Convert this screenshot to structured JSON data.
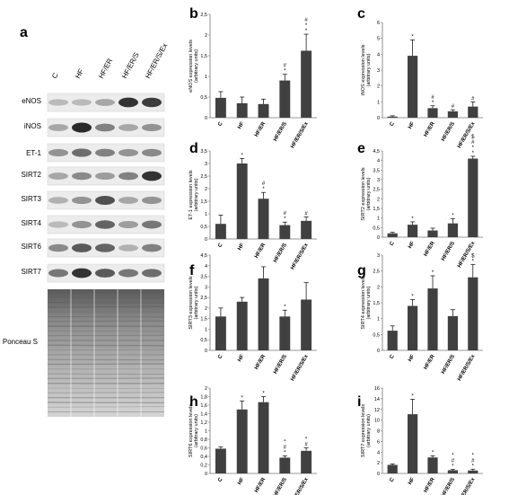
{
  "panel_a": {
    "letter": "a",
    "lanes": [
      "C",
      "HF",
      "HF/ER",
      "HF/ER/S",
      "HF/ER/S/Ex"
    ],
    "rows": [
      "eNOS",
      "iNOS",
      "ET-1",
      "SIRT2",
      "SIRT3",
      "SIRT4",
      "SIRT6",
      "SIRT7"
    ],
    "loading_label": "Ponceau S"
  },
  "chart_data": [
    {
      "panel": "b",
      "type": "bar",
      "categories": [
        "C",
        "HF",
        "HF/ER",
        "HF/ER/S",
        "HF/ER/S/Ex"
      ],
      "values": [
        0.48,
        0.35,
        0.33,
        0.9,
        1.62
      ],
      "errors": [
        0.15,
        0.15,
        0.12,
        0.15,
        0.4
      ],
      "ylabel": "eNOS expression levels\n(arbitrary units)",
      "ylim": [
        0,
        2.5
      ],
      "yticks": [
        0,
        0.5,
        1,
        1.5,
        2,
        2.5
      ],
      "ytick_labels": [
        "0",
        "0,5",
        "1",
        "1,5",
        "2",
        "2,5"
      ],
      "annotations": [
        [],
        [],
        [],
        [
          "#",
          "*"
        ],
        [
          "#",
          "*",
          "*"
        ]
      ]
    },
    {
      "panel": "c",
      "type": "bar",
      "categories": [
        "C",
        "HF",
        "HF/ER",
        "HF/ER/S",
        "HF/ER/S/Ex"
      ],
      "values": [
        0.07,
        3.9,
        0.6,
        0.4,
        0.7
      ],
      "errors": [
        0.05,
        1.0,
        0.15,
        0.1,
        0.3
      ],
      "ylabel": "iNOS expression levels\n(arbitrary units)",
      "ylim": [
        0,
        6
      ],
      "yticks": [
        0,
        1,
        2,
        3,
        4,
        5,
        6
      ],
      "ytick_labels": [
        "0",
        "1",
        "2",
        "3",
        "4",
        "5",
        "6"
      ],
      "annotations": [
        [],
        [
          "*"
        ],
        [
          "#",
          "*"
        ],
        [
          "#"
        ],
        [
          "#"
        ]
      ]
    },
    {
      "panel": "d",
      "type": "bar",
      "categories": [
        "C",
        "HF",
        "HF/ER",
        "HF/ER/S",
        "HF/ER/S/Ex"
      ],
      "values": [
        0.6,
        3.0,
        1.6,
        0.55,
        0.72
      ],
      "errors": [
        0.35,
        0.2,
        0.25,
        0.12,
        0.15
      ],
      "ylabel": "ET-1 expression levels\n(arbitrary units)",
      "ylim": [
        0,
        3.5
      ],
      "yticks": [
        0,
        0.5,
        1,
        1.5,
        2,
        2.5,
        3,
        3.5
      ],
      "ytick_labels": [
        "0",
        "0,5",
        "1",
        "1,5",
        "2",
        "2,5",
        "3",
        "3,5"
      ],
      "annotations": [
        [],
        [
          "*"
        ],
        [
          "#",
          "*"
        ],
        [
          "#",
          "*"
        ],
        [
          "#"
        ]
      ]
    },
    {
      "panel": "e",
      "type": "bar",
      "categories": [
        "C",
        "HF",
        "HF/ER",
        "HF/ER/S",
        "HF/ER/S/Ex"
      ],
      "values": [
        0.2,
        0.65,
        0.35,
        0.72,
        4.1
      ],
      "errors": [
        0.05,
        0.15,
        0.12,
        0.25,
        0.12
      ],
      "ylabel": "SIRT2 expression levels\n(arbitrary units)",
      "ylim": [
        0,
        4.5
      ],
      "yticks": [
        0,
        0.5,
        1,
        1.5,
        2,
        2.5,
        3,
        3.5,
        4,
        4.5
      ],
      "ytick_labels": [
        "0",
        "0,5",
        "1",
        "1,5",
        "2",
        "2,5",
        "3",
        "3,5",
        "4",
        "4,5"
      ],
      "annotations": [
        [],
        [
          "*"
        ],
        [],
        [
          "*"
        ],
        [
          "$",
          "#",
          "*",
          "*"
        ]
      ]
    },
    {
      "panel": "f",
      "type": "bar",
      "categories": [
        "C",
        "HF",
        "HF/ER",
        "HF/ER/S",
        "HF/ER/S/Ex"
      ],
      "values": [
        1.6,
        2.3,
        3.4,
        1.6,
        2.4
      ],
      "errors": [
        0.4,
        0.2,
        0.55,
        0.3,
        0.8
      ],
      "ylabel": "SIRT3 expression levels\n(arbitrary units)",
      "ylim": [
        0,
        4.5
      ],
      "yticks": [
        0,
        0.5,
        1,
        1.5,
        2,
        2.5,
        3,
        3.5,
        4,
        4.5
      ],
      "ytick_labels": [
        "0",
        "0,5",
        "1",
        "1,5",
        "2",
        "2,5",
        "3",
        "3,5",
        "4",
        "4,5"
      ],
      "annotations": [
        [],
        [],
        [],
        [
          "*"
        ],
        []
      ]
    },
    {
      "panel": "g",
      "type": "bar",
      "categories": [
        "C",
        "HF",
        "HF/ER",
        "HF/ER/S",
        "HF/ER/S/Ex"
      ],
      "values": [
        0.62,
        1.4,
        1.95,
        1.08,
        2.3
      ],
      "errors": [
        0.15,
        0.2,
        0.4,
        0.2,
        0.4
      ],
      "ylabel": "SIRT4 expression levels\n(arbitrary units)",
      "ylim": [
        0,
        3
      ],
      "yticks": [
        0,
        0.5,
        1,
        1.5,
        2,
        2.5,
        3
      ],
      "ytick_labels": [
        "0",
        "0,5",
        "1",
        "1,5",
        "2",
        "2,5",
        "3"
      ],
      "annotations": [
        [],
        [
          "*"
        ],
        [
          "*"
        ],
        [],
        [
          "$",
          "*"
        ]
      ]
    },
    {
      "panel": "h",
      "type": "bar",
      "categories": [
        "C",
        "HF",
        "HF/ER",
        "HF/ER/S",
        "HF/ER/S/Ex"
      ],
      "values": [
        0.58,
        1.5,
        1.67,
        0.37,
        0.53
      ],
      "errors": [
        0.04,
        0.2,
        0.13,
        0.04,
        0.07
      ],
      "ylabel": "SIRT6 expression levels\n(arbitrary units)",
      "ylim": [
        0,
        2
      ],
      "yticks": [
        0,
        0.2,
        0.4,
        0.6,
        0.8,
        1,
        1.2,
        1.4,
        1.6,
        1.8,
        2
      ],
      "ytick_labels": [
        "0",
        "0,2",
        "0,4",
        "0,6",
        "0,8",
        "1",
        "1,2",
        "1,4",
        "1,6",
        "1,8",
        "2"
      ],
      "annotations": [
        [],
        [
          "*"
        ],
        [
          "*"
        ],
        [
          "*",
          "#",
          "*"
        ],
        [
          "*",
          "#"
        ]
      ]
    },
    {
      "panel": "i",
      "type": "bar",
      "categories": [
        "C",
        "HF",
        "HF/ER",
        "HF/ER/S",
        "HF/ER/S/Ex"
      ],
      "values": [
        1.6,
        11.1,
        3.0,
        0.6,
        0.55
      ],
      "errors": [
        0.2,
        2.8,
        0.3,
        0.15,
        0.25
      ],
      "ylabel": "SIRT7 expression levels\n(arbitrary units)",
      "ylim": [
        0,
        16
      ],
      "yticks": [
        0,
        2,
        4,
        6,
        8,
        10,
        12,
        14,
        16
      ],
      "ytick_labels": [
        "0",
        "2",
        "4",
        "6",
        "8",
        "10",
        "12",
        "14",
        "16"
      ],
      "annotations": [
        [],
        [
          "*"
        ],
        [
          "*"
        ],
        [
          "*",
          "#",
          "*"
        ],
        [
          "*",
          "#",
          "*"
        ]
      ]
    }
  ]
}
